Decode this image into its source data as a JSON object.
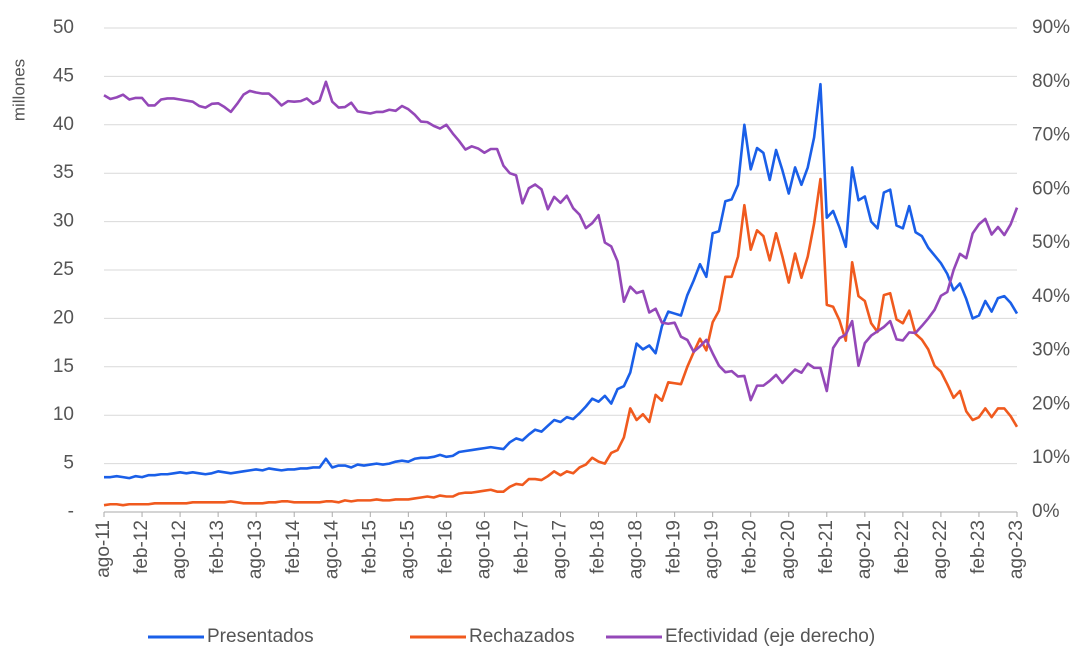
{
  "chart_data": {
    "type": "line",
    "y_label": "millones",
    "categories": [
      "ago-11",
      null,
      null,
      null,
      null,
      null,
      "feb-12",
      null,
      null,
      null,
      null,
      null,
      "ago-12",
      null,
      null,
      null,
      null,
      null,
      "feb-13",
      null,
      null,
      null,
      null,
      null,
      "ago-13",
      null,
      null,
      null,
      null,
      null,
      "feb-14",
      null,
      null,
      null,
      null,
      null,
      "ago-14",
      null,
      null,
      null,
      null,
      null,
      "feb-15",
      null,
      null,
      null,
      null,
      null,
      "ago-15",
      null,
      null,
      null,
      null,
      null,
      "feb-16",
      null,
      null,
      null,
      null,
      null,
      "ago-16",
      null,
      null,
      null,
      null,
      null,
      "feb-17",
      null,
      null,
      null,
      null,
      null,
      "ago-17",
      null,
      null,
      null,
      null,
      null,
      "feb-18",
      null,
      null,
      null,
      null,
      null,
      "ago-18",
      null,
      null,
      null,
      null,
      null,
      "feb-19",
      null,
      null,
      null,
      null,
      null,
      "ago-19",
      null,
      null,
      null,
      null,
      null,
      "feb-20",
      null,
      null,
      null,
      null,
      null,
      "ago-20",
      null,
      null,
      null,
      null,
      null,
      "feb-21",
      null,
      null,
      null,
      null,
      null,
      "ago-21",
      null,
      null,
      null,
      null,
      null,
      "feb-22",
      null,
      null,
      null,
      null,
      null,
      "ago-22",
      null,
      null,
      null,
      null,
      null,
      "feb-23",
      null,
      null,
      null,
      null,
      null,
      "ago-23"
    ],
    "series": [
      {
        "name": "Presentados",
        "color": "#1a5fe8",
        "values": [
          3.6,
          3.6,
          3.7,
          3.6,
          3.5,
          3.7,
          3.6,
          3.8,
          3.8,
          3.9,
          3.9,
          4.0,
          4.1,
          4.0,
          4.1,
          4.0,
          3.9,
          4.0,
          4.2,
          4.1,
          4.0,
          4.1,
          4.2,
          4.3,
          4.4,
          4.3,
          4.5,
          4.4,
          4.3,
          4.4,
          4.4,
          4.5,
          4.5,
          4.6,
          4.6,
          5.5,
          4.6,
          4.8,
          4.8,
          4.6,
          4.9,
          4.8,
          4.9,
          5.0,
          4.9,
          5.0,
          5.2,
          5.3,
          5.2,
          5.5,
          5.6,
          5.6,
          5.7,
          5.9,
          5.7,
          5.8,
          6.2,
          6.3,
          6.4,
          6.5,
          6.6,
          6.7,
          6.6,
          6.5,
          7.2,
          7.6,
          7.4,
          8.0,
          8.5,
          8.3,
          8.9,
          9.5,
          9.3,
          9.8,
          9.6,
          10.2,
          10.9,
          11.7,
          11.4,
          12.0,
          11.2,
          12.7,
          13.0,
          14.4,
          17.4,
          16.8,
          17.2,
          16.4,
          19.2,
          20.7,
          20.5,
          20.3,
          22.4,
          23.9,
          25.6,
          24.3,
          28.8,
          29.0,
          32.1,
          32.3,
          33.8,
          40.0,
          35.4,
          37.6,
          37.1,
          34.3,
          37.4,
          35.3,
          32.9,
          35.6,
          33.8,
          35.6,
          38.7,
          44.2,
          30.4,
          31.1,
          29.4,
          27.4,
          35.6,
          32.2,
          32.6,
          30.0,
          29.3,
          33.0,
          33.3,
          29.6,
          29.3,
          31.6,
          28.9,
          28.5,
          27.3,
          26.5,
          25.7,
          24.6,
          22.9,
          23.6,
          22.0,
          20.0,
          20.3,
          21.8,
          20.7,
          22.1,
          22.3,
          21.6,
          20.5
        ]
      },
      {
        "name": "Rechazados",
        "color": "#f05a1e",
        "values": [
          0.7,
          0.8,
          0.8,
          0.7,
          0.8,
          0.8,
          0.8,
          0.8,
          0.9,
          0.9,
          0.9,
          0.9,
          0.9,
          0.9,
          1.0,
          1.0,
          1.0,
          1.0,
          1.0,
          1.0,
          1.1,
          1.0,
          0.9,
          0.9,
          0.9,
          0.9,
          1.0,
          1.0,
          1.1,
          1.1,
          1.0,
          1.0,
          1.0,
          1.0,
          1.0,
          1.1,
          1.1,
          1.0,
          1.2,
          1.1,
          1.2,
          1.2,
          1.2,
          1.3,
          1.2,
          1.2,
          1.3,
          1.3,
          1.3,
          1.4,
          1.5,
          1.6,
          1.5,
          1.7,
          1.6,
          1.6,
          1.9,
          2.0,
          2.0,
          2.1,
          2.2,
          2.3,
          2.1,
          2.1,
          2.6,
          2.9,
          2.8,
          3.4,
          3.4,
          3.3,
          3.7,
          4.2,
          3.8,
          4.2,
          4.0,
          4.6,
          4.9,
          5.6,
          5.2,
          5.0,
          6.1,
          6.4,
          7.7,
          10.7,
          9.5,
          10.1,
          9.3,
          12.1,
          11.5,
          13.4,
          13.3,
          13.2,
          15.0,
          16.5,
          17.9,
          16.7,
          19.6,
          20.8,
          24.3,
          24.3,
          26.4,
          31.7,
          27.1,
          29.1,
          28.5,
          26.0,
          28.8,
          26.4,
          23.7,
          26.7,
          24.2,
          26.4,
          29.8,
          34.4,
          21.4,
          21.2,
          19.8,
          17.7,
          25.8,
          22.3,
          21.8,
          19.5,
          18.6,
          22.4,
          22.6,
          19.9,
          19.5,
          20.8,
          18.4,
          17.8,
          16.8,
          15.1,
          14.5,
          13.2,
          11.8,
          12.5,
          10.4,
          9.5,
          9.8,
          10.7,
          9.8,
          10.7,
          10.7,
          9.9,
          8.8
        ]
      },
      {
        "name": "Efectividad (eje derecho)",
        "color": "#9448b8",
        "axis": "y2",
        "values": [
          77.5,
          76.8,
          77.1,
          77.6,
          76.7,
          77.0,
          77.0,
          75.6,
          75.6,
          76.7,
          76.9,
          76.9,
          76.7,
          76.5,
          76.3,
          75.5,
          75.2,
          75.9,
          76.0,
          75.3,
          74.4,
          75.9,
          77.6,
          78.3,
          78.0,
          77.8,
          77.8,
          76.8,
          75.6,
          76.4,
          76.3,
          76.4,
          76.9,
          75.9,
          76.5,
          80.0,
          76.3,
          75.2,
          75.3,
          76.1,
          74.5,
          74.3,
          74.1,
          74.4,
          74.4,
          74.8,
          74.6,
          75.5,
          74.9,
          73.9,
          72.6,
          72.5,
          71.8,
          71.3,
          72.0,
          70.4,
          69.0,
          67.4,
          68.0,
          67.6,
          66.8,
          67.5,
          67.5,
          64.4,
          63.0,
          62.6,
          57.4,
          60.2,
          60.9,
          60.0,
          56.3,
          58.6,
          57.5,
          58.8,
          56.5,
          55.3,
          52.8,
          53.7,
          55.2,
          50.1,
          49.4,
          46.6,
          39.1,
          41.9,
          40.7,
          41.1,
          37.1,
          37.8,
          35.2,
          35.0,
          35.2,
          32.6,
          32.0,
          29.8,
          30.8,
          32.0,
          29.5,
          27.2,
          26.0,
          26.2,
          25.2,
          25.3,
          20.8,
          23.5,
          23.5,
          24.4,
          25.5,
          24.0,
          25.3,
          26.5,
          25.9,
          27.6,
          26.8,
          26.8,
          22.5,
          30.5,
          32.3,
          33.0,
          35.5,
          27.2,
          31.4,
          32.8,
          33.6,
          34.4,
          35.5,
          32.1,
          31.9,
          33.4,
          33.3,
          34.6,
          36.0,
          37.6,
          40.2,
          40.9,
          45.0,
          48.0,
          47.2,
          51.8,
          53.5,
          54.5,
          51.6,
          53.0,
          51.5,
          53.5,
          56.6
        ]
      }
    ],
    "ylim": [
      0,
      50
    ],
    "yticks": [
      {
        "value": 0,
        "label": "-"
      },
      5,
      10,
      15,
      20,
      25,
      30,
      35,
      40,
      45,
      50
    ],
    "y2lim": [
      0,
      90
    ],
    "y2ticks": [
      {
        "value": 0,
        "label": "0%"
      },
      {
        "value": 10,
        "label": "10%"
      },
      {
        "value": 20,
        "label": "20%"
      },
      {
        "value": 30,
        "label": "30%"
      },
      {
        "value": 40,
        "label": "40%"
      },
      {
        "value": 50,
        "label": "50%"
      },
      {
        "value": 60,
        "label": "60%"
      },
      {
        "value": 70,
        "label": "70%"
      },
      {
        "value": 80,
        "label": "80%"
      },
      {
        "value": 90,
        "label": "90%"
      }
    ],
    "grid": true,
    "legend": "bottom"
  }
}
